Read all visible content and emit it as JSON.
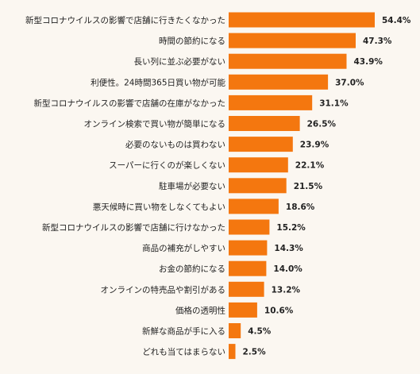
{
  "colors": {
    "background": "#fbf7f1",
    "bar": "#f4770f",
    "text": "#222222"
  },
  "chart_data": {
    "type": "bar",
    "orientation": "horizontal",
    "title": "",
    "xlabel": "",
    "ylabel": "",
    "value_suffix": "%",
    "xlim": [
      0,
      54.4
    ],
    "grid": false,
    "legend": "none",
    "categories": [
      "新型コロナウイルスの影響で店舗に行きたくなかった",
      "時間の節約になる",
      "長い列に並ぶ必要がない",
      "利便性。24時間365日買い物が可能",
      "新型コロナウイルスの影響で店舗の在庫がなかった",
      "オンライン検索で買い物が簡単になる",
      "必要のないものは買わない",
      "スーパーに行くのが楽しくない",
      "駐車場が必要ない",
      "悪天候時に買い物をしなくてもよい",
      "新型コロナウイルスの影響で店舗に行けなかった",
      "商品の補充がしやすい",
      "お金の節約になる",
      "オンラインの特売品や割引がある",
      "価格の透明性",
      "新鮮な商品が手に入る",
      "どれも当てはまらない"
    ],
    "values": [
      54.4,
      47.3,
      43.9,
      37.0,
      31.1,
      26.5,
      23.9,
      22.1,
      21.5,
      18.6,
      15.2,
      14.3,
      14.0,
      13.2,
      10.6,
      4.5,
      2.5
    ]
  }
}
